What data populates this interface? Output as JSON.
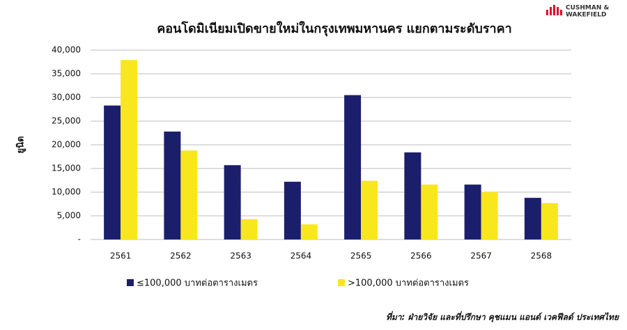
{
  "chart_data": {
    "type": "bar",
    "title": "คอนโดมิเนียมเปิดขายใหม่ในกรุงเทพมหานคร แยกตามระดับราคา",
    "y_label": "ยูนิต",
    "categories": [
      "2561",
      "2562",
      "2563",
      "2564",
      "2565",
      "2566",
      "2567",
      "2568"
    ],
    "series": [
      {
        "name": "≤100,000 บาทต่อตารางเมตร",
        "color": "#1b1f6b",
        "values": [
          28300,
          22800,
          15700,
          12200,
          30500,
          18400,
          11600,
          8800
        ]
      },
      {
        "name": ">100,000 บาทต่อตารางเมตร",
        "color": "#f8e71c",
        "values": [
          37900,
          18800,
          4300,
          3200,
          12400,
          11600,
          10000,
          7700
        ]
      }
    ],
    "ylim": [
      0,
      40000
    ],
    "yticks": [
      {
        "value": 0,
        "label": "-"
      },
      {
        "value": 5000,
        "label": "5,000"
      },
      {
        "value": 10000,
        "label": "10,000"
      },
      {
        "value": 15000,
        "label": "15,000"
      },
      {
        "value": 20000,
        "label": "20,000"
      },
      {
        "value": 25000,
        "label": "25,000"
      },
      {
        "value": 30000,
        "label": "30,000"
      },
      {
        "value": 35000,
        "label": "35,000"
      },
      {
        "value": 40000,
        "label": "40,000"
      }
    ],
    "grid": true,
    "source": "ที่มา: ฝ่ายวิจัย และที่ปรึกษา คุชแมน แอนด์ เวคฟีลด์ ประเทศไทย"
  },
  "logo": [
    "CUSHMAN &",
    "WAKEFIELD"
  ]
}
